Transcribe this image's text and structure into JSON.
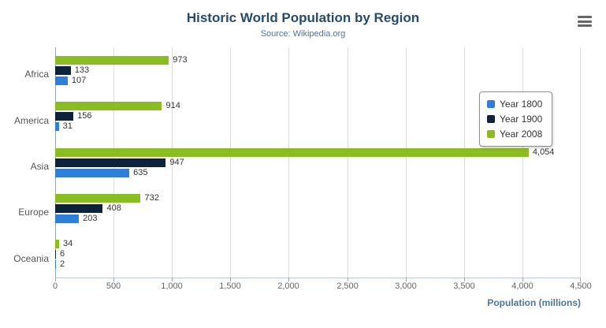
{
  "header": {
    "title": "Historic World Population by Region",
    "subtitle": "Source: Wikipedia.org"
  },
  "export_menu": {
    "icon": "hamburger-icon"
  },
  "chart_data": {
    "type": "bar",
    "orientation": "horizontal",
    "title": "Historic World Population by Region",
    "subtitle": "Source: Wikipedia.org",
    "categories": [
      "Africa",
      "America",
      "Asia",
      "Europe",
      "Oceania"
    ],
    "series": [
      {
        "name": "Year 1800",
        "color": "#2f7ed8",
        "values": [
          107,
          31,
          635,
          203,
          2
        ]
      },
      {
        "name": "Year 1900",
        "color": "#0d233a",
        "values": [
          133,
          156,
          947,
          408,
          6
        ]
      },
      {
        "name": "Year 2008",
        "color": "#8bbc21",
        "values": [
          973,
          914,
          4054,
          732,
          34
        ]
      }
    ],
    "bar_stack_order_top_to_bottom": [
      "Year 2008",
      "Year 1900",
      "Year 1800"
    ],
    "xlabel": "Population (millions)",
    "ylabel": "",
    "xlim": [
      0,
      4500
    ],
    "x_ticks": [
      "0",
      "500",
      "1,000",
      "1,500",
      "2,000",
      "2,500",
      "3,000",
      "3,500",
      "4,000",
      "4,500"
    ],
    "grid": true,
    "legend_position": "right",
    "data_labels": true
  }
}
